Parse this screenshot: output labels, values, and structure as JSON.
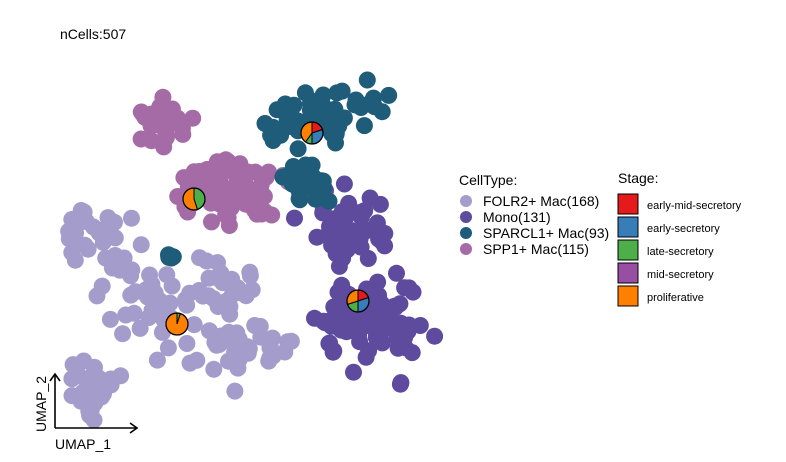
{
  "header": {
    "ncells_label": "nCells:507"
  },
  "axes": {
    "x_label": "UMAP_1",
    "y_label": "UMAP_2"
  },
  "legend_celltype": {
    "title": "CellType:",
    "items": [
      {
        "label": "FOLR2+ Mac(168)",
        "color": "#A49DCB"
      },
      {
        "label": "Mono(131)",
        "color": "#5E4B9E"
      },
      {
        "label": "SPARCL1+ Mac(93)",
        "color": "#1F5C7A"
      },
      {
        "label": "SPP1+ Mac(115)",
        "color": "#A46BA6"
      }
    ]
  },
  "legend_stage": {
    "title": "Stage:",
    "items": [
      {
        "label": "early-mid-secretory",
        "color": "#E41A1C"
      },
      {
        "label": "early-secretory",
        "color": "#377EB8"
      },
      {
        "label": "late-secretory",
        "color": "#4DAF4A"
      },
      {
        "label": "mid-secretory",
        "color": "#984EA3"
      },
      {
        "label": "proliferative",
        "color": "#FF7F00"
      }
    ]
  },
  "chart_data": {
    "type": "scatter",
    "title": "nCells:507",
    "xlabel": "UMAP_1",
    "ylabel": "UMAP_2",
    "series": [
      {
        "name": "FOLR2+ Mac(168)",
        "count": 168,
        "color": "#A49DCB"
      },
      {
        "name": "Mono(131)",
        "count": 131,
        "color": "#5E4B9E"
      },
      {
        "name": "SPARCL1+ Mac(93)",
        "count": 93,
        "color": "#1F5C7A"
      },
      {
        "name": "SPP1+ Mac(115)",
        "count": 115,
        "color": "#A46BA6"
      }
    ],
    "stage_pies": [
      {
        "celltype": "SPARCL1+ Mac(93)",
        "fractions": [
          0.2,
          0.3,
          0.1,
          0,
          0.4
        ]
      },
      {
        "celltype": "SPP1+ Mac(115)",
        "fractions": [
          0,
          0,
          0.45,
          0,
          0.55
        ]
      },
      {
        "celltype": "Mono(131)",
        "fractions": [
          0.2,
          0.3,
          0.2,
          0,
          0.3
        ]
      },
      {
        "celltype": "FOLR2+ Mac(168)",
        "fractions": [
          0,
          0,
          0.05,
          0,
          0.95
        ]
      }
    ]
  }
}
